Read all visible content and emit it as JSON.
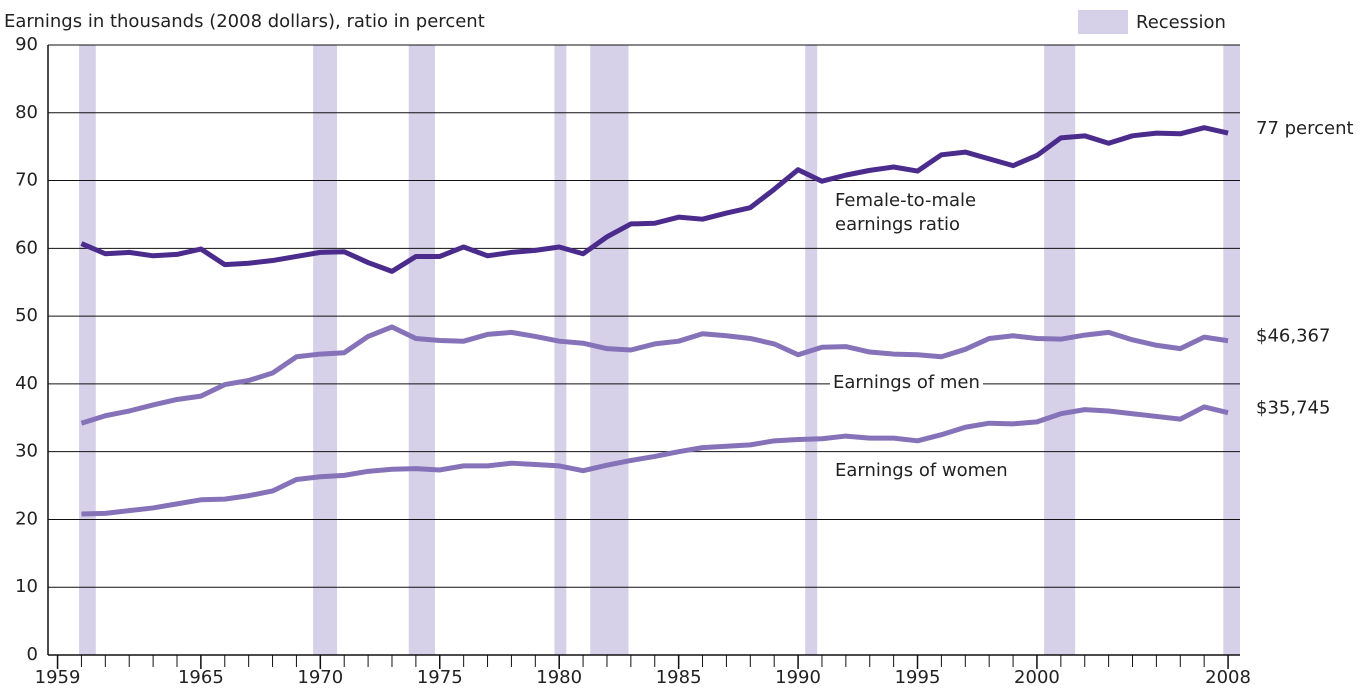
{
  "chart_data": {
    "type": "line",
    "y_label": "Earnings in thousands (2008 dollars), ratio in percent",
    "xlim": [
      1958.6,
      2008.5
    ],
    "xticks": [
      1959,
      1965,
      1970,
      1975,
      1980,
      1985,
      1990,
      1995,
      2000,
      2008
    ],
    "ylim": [
      0,
      90
    ],
    "yticks": [
      0,
      10,
      20,
      30,
      40,
      50,
      60,
      70,
      80,
      90
    ],
    "grid": true,
    "legend": {
      "label": "Recession",
      "color": "#d6d1e8",
      "position": "top-right"
    },
    "recessions": [
      [
        1959.9,
        1960.6
      ],
      [
        1969.7,
        1970.7
      ],
      [
        1973.7,
        1974.8
      ],
      [
        1979.8,
        1980.3
      ],
      [
        1981.3,
        1982.9
      ],
      [
        1990.3,
        1990.8
      ],
      [
        2000.3,
        2001.6
      ],
      [
        2007.8,
        2008.5
      ]
    ],
    "x": [
      1960,
      1961,
      1962,
      1963,
      1964,
      1965,
      1966,
      1967,
      1968,
      1969,
      1970,
      1971,
      1972,
      1973,
      1974,
      1975,
      1976,
      1977,
      1978,
      1979,
      1980,
      1981,
      1982,
      1983,
      1984,
      1985,
      1986,
      1987,
      1988,
      1989,
      1990,
      1991,
      1992,
      1993,
      1994,
      1995,
      1996,
      1997,
      1998,
      1999,
      2000,
      2001,
      2002,
      2003,
      2004,
      2005,
      2006,
      2007,
      2008
    ],
    "series": [
      {
        "name": "Female-to-male earnings ratio",
        "color": "#4b2b8c",
        "end_label": "77 percent",
        "values": [
          60.7,
          59.2,
          59.4,
          58.9,
          59.1,
          59.9,
          57.6,
          57.8,
          58.2,
          58.8,
          59.4,
          59.5,
          57.9,
          56.6,
          58.8,
          58.8,
          60.2,
          58.9,
          59.4,
          59.7,
          60.2,
          59.2,
          61.7,
          63.6,
          63.7,
          64.6,
          64.3,
          65.2,
          66.0,
          68.7,
          71.6,
          69.9,
          70.8,
          71.5,
          72.0,
          71.4,
          73.8,
          74.2,
          73.2,
          72.2,
          73.7,
          76.3,
          76.6,
          75.5,
          76.6,
          77.0,
          76.9,
          77.8,
          77
        ]
      },
      {
        "name": "Earnings of men",
        "color": "#8672b8",
        "end_label": "$46,367",
        "values": [
          34.2,
          35.3,
          36.0,
          36.9,
          37.7,
          38.2,
          39.9,
          40.5,
          41.6,
          44.0,
          44.4,
          44.6,
          47.0,
          48.4,
          46.7,
          46.4,
          46.3,
          47.3,
          47.6,
          47.0,
          46.3,
          46.0,
          45.2,
          45.0,
          45.9,
          46.3,
          47.4,
          47.1,
          46.7,
          45.9,
          44.3,
          45.4,
          45.5,
          44.7,
          44.4,
          44.3,
          44.0,
          45.1,
          46.7,
          47.1,
          46.7,
          46.6,
          47.2,
          47.6,
          46.5,
          45.7,
          45.2,
          46.9,
          46.367
        ]
      },
      {
        "name": "Earnings of women",
        "color": "#8672b8",
        "end_label": "$35,745",
        "values": [
          20.8,
          20.9,
          21.3,
          21.7,
          22.3,
          22.9,
          23.0,
          23.5,
          24.2,
          25.9,
          26.3,
          26.5,
          27.1,
          27.4,
          27.5,
          27.3,
          27.9,
          27.9,
          28.3,
          28.1,
          27.9,
          27.2,
          28.0,
          28.7,
          29.3,
          30.0,
          30.6,
          30.8,
          31.0,
          31.6,
          31.8,
          31.9,
          32.3,
          32.0,
          32.0,
          31.6,
          32.5,
          33.6,
          34.2,
          34.1,
          34.4,
          35.6,
          36.2,
          36.0,
          35.6,
          35.2,
          34.8,
          36.6,
          35.745
        ]
      }
    ]
  }
}
